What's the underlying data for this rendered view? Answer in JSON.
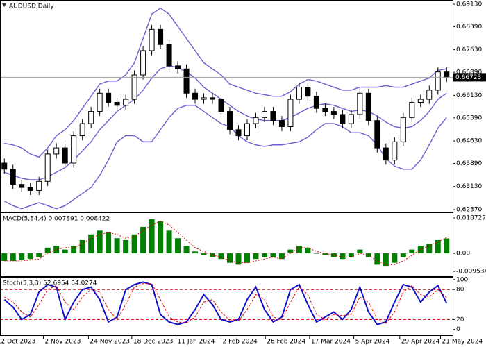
{
  "chart_data": [
    {
      "type": "candlestick",
      "title": "AUDUSD,Daily",
      "xlim": [
        -0.5,
        51.7
      ],
      "ylim": [
        0.62302,
        0.69244
      ],
      "yticks": [
        {
          "value": 0.6913,
          "label": "0.69130"
        },
        {
          "value": 0.6839,
          "label": "0.68390"
        },
        {
          "value": 0.6763,
          "label": "0.67630"
        },
        {
          "value": 0.6689,
          "label": "0.66890"
        },
        {
          "value": 0.6613,
          "label": "0.66130"
        },
        {
          "value": 0.6539,
          "label": "0.65390"
        },
        {
          "value": 0.6463,
          "label": "0.64630"
        },
        {
          "value": 0.6389,
          "label": "0.63890"
        },
        {
          "value": 0.6313,
          "label": "0.63130"
        },
        {
          "value": 0.6237,
          "label": "0.62370"
        }
      ],
      "last_price": 0.66723,
      "open": [
        0.639,
        0.637,
        0.632,
        0.631,
        0.63,
        0.633,
        0.642,
        0.644,
        0.639,
        0.648,
        0.652,
        0.656,
        0.662,
        0.659,
        0.658,
        0.66,
        0.668,
        0.676,
        0.683,
        0.678,
        0.671,
        0.67,
        0.662,
        0.66,
        0.6605,
        0.66,
        0.656,
        0.65,
        0.648,
        0.652,
        0.654,
        0.656,
        0.653,
        0.651,
        0.66,
        0.664,
        0.661,
        0.657,
        0.656,
        0.655,
        0.652,
        0.655,
        0.662,
        0.653,
        0.644,
        0.64,
        0.646,
        0.654,
        0.659,
        0.66,
        0.663,
        0.669
      ],
      "high": [
        0.6405,
        0.6385,
        0.6335,
        0.6325,
        0.6345,
        0.6435,
        0.6455,
        0.6455,
        0.6495,
        0.6535,
        0.6575,
        0.6635,
        0.6635,
        0.6605,
        0.6615,
        0.6695,
        0.6775,
        0.6845,
        0.6845,
        0.6795,
        0.6725,
        0.6715,
        0.6635,
        0.662,
        0.662,
        0.6615,
        0.6575,
        0.6515,
        0.6535,
        0.6555,
        0.6575,
        0.6575,
        0.6545,
        0.6615,
        0.6655,
        0.6655,
        0.6625,
        0.6585,
        0.6575,
        0.6565,
        0.6565,
        0.6635,
        0.6635,
        0.6545,
        0.6455,
        0.6475,
        0.6555,
        0.6605,
        0.6615,
        0.6645,
        0.6705,
        0.6705
      ],
      "low": [
        0.6355,
        0.6305,
        0.6295,
        0.6285,
        0.6285,
        0.6315,
        0.6405,
        0.6375,
        0.6375,
        0.6465,
        0.6505,
        0.6545,
        0.6575,
        0.6565,
        0.6565,
        0.6585,
        0.6665,
        0.6745,
        0.6765,
        0.6695,
        0.6685,
        0.6605,
        0.6585,
        0.6585,
        0.6585,
        0.6545,
        0.6485,
        0.6465,
        0.6465,
        0.6505,
        0.6525,
        0.6515,
        0.6495,
        0.6495,
        0.6585,
        0.6595,
        0.6555,
        0.6545,
        0.6535,
        0.6505,
        0.6505,
        0.6535,
        0.6515,
        0.6425,
        0.6385,
        0.6385,
        0.6445,
        0.6525,
        0.6575,
        0.6585,
        0.6615,
        0.6657
      ],
      "close": [
        0.637,
        0.632,
        0.631,
        0.63,
        0.633,
        0.642,
        0.644,
        0.639,
        0.648,
        0.652,
        0.656,
        0.662,
        0.659,
        0.658,
        0.66,
        0.668,
        0.676,
        0.683,
        0.678,
        0.671,
        0.67,
        0.662,
        0.66,
        0.6605,
        0.66,
        0.656,
        0.65,
        0.648,
        0.652,
        0.654,
        0.656,
        0.653,
        0.651,
        0.66,
        0.664,
        0.661,
        0.657,
        0.656,
        0.655,
        0.652,
        0.655,
        0.662,
        0.653,
        0.644,
        0.64,
        0.646,
        0.654,
        0.659,
        0.66,
        0.663,
        0.669,
        0.6672
      ],
      "lines": [
        {
          "color": "#6a5fd0",
          "values": [
            0.6455,
            0.645,
            0.644,
            0.642,
            0.641,
            0.644,
            0.648,
            0.65,
            0.653,
            0.657,
            0.661,
            0.665,
            0.666,
            0.666,
            0.668,
            0.672,
            0.68,
            0.688,
            0.69,
            0.688,
            0.684,
            0.68,
            0.676,
            0.672,
            0.67,
            0.668,
            0.665,
            0.664,
            0.663,
            0.662,
            0.6615,
            0.661,
            0.661,
            0.6625,
            0.665,
            0.6665,
            0.666,
            0.665,
            0.664,
            0.663,
            0.663,
            0.664,
            0.664,
            0.664,
            0.6645,
            0.664,
            0.664,
            0.665,
            0.666,
            0.667,
            0.6695,
            0.67
          ]
        },
        {
          "color": "#6a5fd0",
          "values": [
            0.636,
            0.635,
            0.634,
            0.6335,
            0.6335,
            0.6345,
            0.636,
            0.6375,
            0.64,
            0.643,
            0.646,
            0.65,
            0.653,
            0.656,
            0.658,
            0.66,
            0.663,
            0.667,
            0.67,
            0.671,
            0.6705,
            0.669,
            0.667,
            0.664,
            0.662,
            0.66,
            0.658,
            0.656,
            0.6545,
            0.6535,
            0.653,
            0.653,
            0.653,
            0.654,
            0.6555,
            0.657,
            0.658,
            0.6585,
            0.658,
            0.657,
            0.656,
            0.6565,
            0.656,
            0.6545,
            0.6525,
            0.651,
            0.6505,
            0.651,
            0.653,
            0.656,
            0.66,
            0.662
          ]
        },
        {
          "color": "#6a5fd0",
          "values": [
            0.6265,
            0.625,
            0.624,
            0.625,
            0.626,
            0.625,
            0.624,
            0.625,
            0.627,
            0.629,
            0.631,
            0.635,
            0.64,
            0.646,
            0.648,
            0.648,
            0.646,
            0.646,
            0.65,
            0.654,
            0.657,
            0.658,
            0.658,
            0.656,
            0.654,
            0.652,
            0.651,
            0.648,
            0.646,
            0.645,
            0.6445,
            0.645,
            0.645,
            0.6455,
            0.646,
            0.6475,
            0.65,
            0.652,
            0.652,
            0.651,
            0.649,
            0.649,
            0.648,
            0.645,
            0.6405,
            0.638,
            0.637,
            0.637,
            0.64,
            0.645,
            0.6505,
            0.654
          ]
        }
      ]
    },
    {
      "type": "histogram",
      "title": "MACD(5,34,4) 0.007891 0.008422",
      "xlim": [
        -0.5,
        51.7
      ],
      "ylim": [
        -0.0121,
        0.0213
      ],
      "yticks": [
        0.018727,
        {
          "value": 0,
          "label": "0.00"
        },
        -0.009534
      ],
      "color": "#008000",
      "values": [
        -0.004,
        -0.004,
        -0.0035,
        -0.003,
        -0.002,
        0.003,
        0.004,
        0.002,
        0.004,
        0.007,
        0.01,
        0.012,
        0.011,
        0.008,
        0.007,
        0.01,
        0.014,
        0.018,
        0.017,
        0.012,
        0.008,
        0.004,
        0.001,
        -0.001,
        -0.002,
        -0.003,
        -0.005,
        -0.006,
        -0.005,
        -0.003,
        -0.002,
        -0.002,
        -0.003,
        0.002,
        0.004,
        0.003,
        0.0,
        -0.001,
        -0.002,
        -0.003,
        -0.002,
        0.002,
        -0.002,
        -0.006,
        -0.007,
        -0.005,
        -0.002,
        0.002,
        0.004,
        0.005,
        0.007,
        0.0079
      ],
      "signal": {
        "color": "#e00000",
        "values": [
          -0.004,
          -0.004,
          -0.004,
          -0.0035,
          -0.003,
          0.0,
          0.002,
          0.003,
          0.003,
          0.005,
          0.008,
          0.01,
          0.011,
          0.01,
          0.008,
          0.009,
          0.012,
          0.015,
          0.017,
          0.015,
          0.011,
          0.007,
          0.003,
          0.001,
          -0.001,
          -0.002,
          -0.004,
          -0.005,
          -0.005,
          -0.004,
          -0.003,
          -0.002,
          -0.003,
          0.0,
          0.003,
          0.003,
          0.001,
          0.0,
          -0.001,
          -0.002,
          -0.002,
          0.0,
          -0.001,
          -0.004,
          -0.006,
          -0.006,
          -0.004,
          -0.001,
          0.002,
          0.004,
          0.006,
          0.0084
        ]
      }
    },
    {
      "type": "line",
      "title": "Stoch(5,3,3) 52.6954 64.0274",
      "xlim": [
        -0.5,
        51.7
      ],
      "ylim": [
        -11.5,
        104
      ],
      "yticks": [
        100,
        80,
        20,
        0
      ],
      "levels": [
        80,
        20
      ],
      "level_color": "#e00000",
      "xticks": [
        {
          "value": -1,
          "label": "12 Oct 2023"
        },
        {
          "value": 4.5,
          "label": "2 Nov 2023"
        },
        {
          "value": 9.7,
          "label": "24 Nov 2023"
        },
        {
          "value": 14.7,
          "label": "18 Dec 2023"
        },
        {
          "value": 19.8,
          "label": "11 Jan 2024"
        },
        {
          "value": 25,
          "label": "2 Feb 2024"
        },
        {
          "value": 30.1,
          "label": "26 Feb 2024"
        },
        {
          "value": 35.2,
          "label": "17 Mar 2024"
        },
        {
          "value": 40.3,
          "label": "5 Apr 2024"
        },
        {
          "value": 45.6,
          "label": "29 Apr 2024"
        },
        {
          "value": 50.3,
          "label": "21 May 2024"
        }
      ],
      "series": [
        {
          "color": "#1010c8",
          "style": "solid",
          "values": [
            60,
            45,
            20,
            30,
            75,
            90,
            85,
            20,
            55,
            80,
            85,
            60,
            15,
            25,
            80,
            90,
            95,
            90,
            30,
            15,
            10,
            15,
            40,
            70,
            50,
            20,
            15,
            20,
            60,
            85,
            40,
            15,
            25,
            80,
            90,
            50,
            15,
            25,
            35,
            20,
            40,
            85,
            35,
            10,
            15,
            55,
            90,
            85,
            55,
            75,
            88,
            52.7
          ]
        },
        {
          "color": "#e00000",
          "style": "dashed",
          "values": [
            65,
            55,
            35,
            25,
            50,
            80,
            88,
            55,
            40,
            65,
            80,
            75,
            40,
            20,
            50,
            85,
            92,
            92,
            60,
            25,
            15,
            13,
            25,
            55,
            60,
            35,
            18,
            17,
            40,
            70,
            60,
            25,
            20,
            55,
            85,
            70,
            30,
            20,
            30,
            28,
            30,
            65,
            55,
            20,
            12,
            35,
            75,
            88,
            70,
            65,
            80,
            64
          ]
        }
      ]
    }
  ]
}
